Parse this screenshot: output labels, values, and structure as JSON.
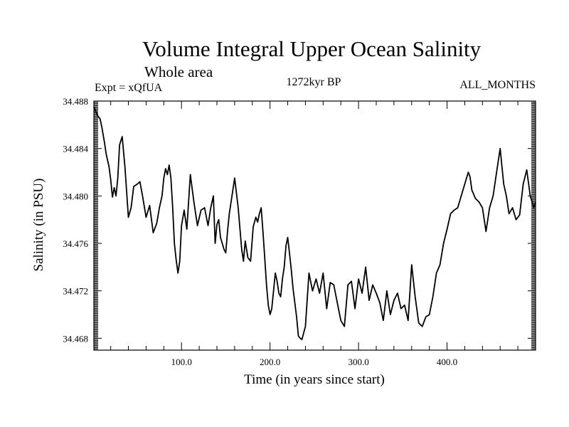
{
  "chart_data": {
    "type": "line",
    "title": "Volume Integral Upper Ocean Salinity",
    "subtitle": "Whole area",
    "experiment": "Expt = xQfUA",
    "period": "1272kyr BP",
    "months": "ALL_MONTHS",
    "xlabel": "Time (in years since start)",
    "ylabel": "Salinity (in PSU)",
    "xlim": [
      1,
      500
    ],
    "ylim": [
      34.467,
      34.488
    ],
    "xticks": [
      100,
      200,
      300,
      400
    ],
    "xtick_labels": [
      "100.0",
      "200.0",
      "300.0",
      "400.0"
    ],
    "yticks": [
      34.468,
      34.472,
      34.476,
      34.48,
      34.484,
      34.488
    ],
    "ytick_labels": [
      "34.468",
      "34.472",
      "34.476",
      "34.480",
      "34.484",
      "34.488"
    ],
    "series": [
      {
        "name": "Salinity",
        "x": [
          1,
          5,
          8,
          10,
          13,
          15,
          18,
          20,
          22,
          24,
          26,
          28,
          30,
          33,
          36,
          40,
          43,
          46,
          50,
          53,
          56,
          60,
          64,
          68,
          72,
          75,
          78,
          80,
          82,
          84,
          86,
          88,
          90,
          92,
          94,
          96,
          98,
          100,
          103,
          106,
          110,
          114,
          118,
          122,
          126,
          130,
          133,
          136,
          138,
          140,
          142,
          144,
          146,
          148,
          150,
          152,
          154,
          156,
          158,
          160,
          164,
          168,
          170,
          172,
          175,
          178,
          181,
          184,
          186,
          188,
          190,
          192,
          194,
          196,
          198,
          200,
          202,
          204,
          206,
          208,
          210,
          212,
          214,
          216,
          218,
          220,
          222,
          224,
          226,
          228,
          230,
          232,
          234,
          236,
          240,
          244,
          248,
          252,
          256,
          260,
          264,
          268,
          272,
          276,
          280,
          284,
          288,
          292,
          296,
          300,
          304,
          308,
          312,
          316,
          320,
          324,
          328,
          332,
          336,
          340,
          344,
          348,
          352,
          356,
          360,
          364,
          368,
          372,
          376,
          380,
          384,
          388,
          392,
          396,
          400,
          404,
          408,
          412,
          416,
          420,
          424,
          426,
          428,
          432,
          436,
          440,
          444,
          448,
          452,
          456,
          458,
          460,
          462,
          464,
          467,
          470,
          474,
          478,
          482,
          486,
          490,
          494,
          498,
          500
        ],
        "values": [
          34.4875,
          34.4868,
          34.4865,
          34.4858,
          34.4845,
          34.4835,
          34.4825,
          34.4814,
          34.4799,
          34.4807,
          34.48,
          34.4815,
          34.4843,
          34.485,
          34.4825,
          34.4782,
          34.479,
          34.4808,
          34.481,
          34.4812,
          34.48,
          34.4782,
          34.4792,
          34.4769,
          34.4777,
          34.479,
          34.48,
          34.4815,
          34.4823,
          34.4818,
          34.4826,
          34.4815,
          34.479,
          34.476,
          34.4746,
          34.4735,
          34.4745,
          34.4775,
          34.4788,
          34.4772,
          34.4818,
          34.4795,
          34.4775,
          34.4788,
          34.479,
          34.4775,
          34.479,
          34.48,
          34.476,
          34.4776,
          34.478,
          34.4765,
          34.476,
          34.4755,
          34.4752,
          34.477,
          34.4785,
          34.4795,
          34.4805,
          34.4815,
          34.479,
          34.4755,
          34.4745,
          34.4762,
          34.4748,
          34.4745,
          34.4774,
          34.4782,
          34.4778,
          34.4785,
          34.479,
          34.477,
          34.4748,
          34.4725,
          34.4708,
          34.47,
          34.4705,
          34.472,
          34.4735,
          34.4728,
          34.4718,
          34.4715,
          34.473,
          34.474,
          34.4758,
          34.4765,
          34.4752,
          34.4738,
          34.4722,
          34.471,
          34.4698,
          34.4682,
          34.468,
          34.4679,
          34.469,
          34.4735,
          34.472,
          34.473,
          34.4718,
          34.4735,
          34.4705,
          34.4727,
          34.4725,
          34.471,
          34.4695,
          34.469,
          34.4725,
          34.4728,
          34.4705,
          34.473,
          34.4718,
          34.474,
          34.4712,
          34.4725,
          34.4718,
          34.471,
          34.4695,
          34.472,
          34.47,
          34.4712,
          34.4718,
          34.4705,
          34.4708,
          34.4695,
          34.4742,
          34.4715,
          34.4693,
          34.469,
          34.4698,
          34.47,
          34.4715,
          34.4735,
          34.4742,
          34.476,
          34.4772,
          34.4785,
          34.4788,
          34.479,
          34.48,
          34.481,
          34.482,
          34.4816,
          34.4805,
          34.4798,
          34.4795,
          34.479,
          34.477,
          34.479,
          34.48,
          34.482,
          34.483,
          34.484,
          34.4825,
          34.481,
          34.48,
          34.4785,
          34.479,
          34.478,
          34.4784,
          34.481,
          34.4822,
          34.48,
          34.479,
          34.4795
        ]
      }
    ]
  }
}
